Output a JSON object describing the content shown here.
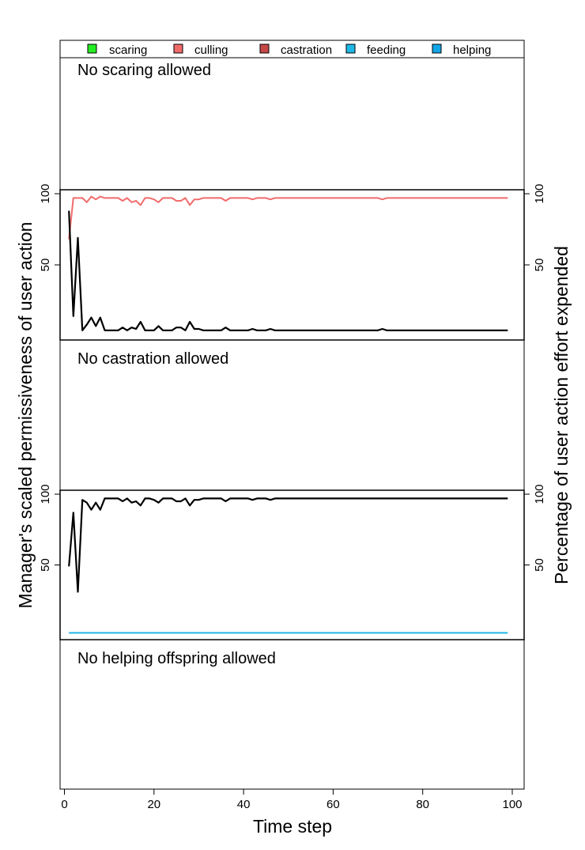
{
  "figure": {
    "x_axis_label": "Time step",
    "y_axis_label_left": "Manager's scaled permissiveness of user action",
    "y_axis_label_right": "Percentage of user action effort expended"
  },
  "legend": {
    "placement": "top",
    "entries": [
      {
        "label": "scaring",
        "color": "#22EE22"
      },
      {
        "label": "culling",
        "color": "#F26B6B"
      },
      {
        "label": "castration",
        "color": "#C54848"
      },
      {
        "label": "feeding",
        "color": "#1EB8E6"
      },
      {
        "label": "helping",
        "color": "#12A6E8"
      }
    ]
  },
  "panels": {
    "scaring": {
      "message": "No scaring allowed"
    },
    "castration": {
      "message": "No castration allowed"
    },
    "helping": {
      "message": "No helping offspring allowed"
    }
  },
  "chart_data": [
    {
      "type": "line",
      "panel": "culling",
      "xlim": [
        0,
        100
      ],
      "ylim": [
        0,
        100
      ],
      "x_ticks": [
        0,
        20,
        40,
        60,
        80,
        100
      ],
      "y_ticks_left": [
        50,
        100
      ],
      "y_ticks_right": [
        50,
        100
      ],
      "series": [
        {
          "role": "permissiveness",
          "color": "#000000",
          "x": [
            1,
            2,
            3,
            4,
            5,
            6,
            7,
            8,
            9,
            10,
            11,
            12,
            13,
            14,
            15,
            16,
            17,
            18,
            19,
            20,
            21,
            22,
            23,
            24,
            25,
            26,
            27,
            28,
            29,
            30,
            31,
            32,
            33,
            34,
            35,
            36,
            37,
            38,
            39,
            40,
            41,
            42,
            43,
            44,
            45,
            46,
            47,
            48,
            49,
            50,
            60,
            70,
            71,
            72,
            80,
            90,
            99
          ],
          "y": [
            88,
            14,
            69,
            4,
            8,
            13,
            7,
            13,
            4,
            4,
            4,
            4,
            6,
            4,
            6,
            5,
            10,
            4,
            4,
            4,
            7,
            4,
            4,
            4,
            6,
            6,
            4,
            10,
            5,
            5,
            4,
            4,
            4,
            4,
            4,
            6,
            4,
            4,
            4,
            4,
            4,
            5,
            4,
            4,
            4,
            5,
            4,
            4,
            4,
            4,
            4,
            4,
            5,
            4,
            4,
            4,
            4
          ]
        },
        {
          "role": "effort",
          "color": "#F26B6B",
          "x": [
            1,
            2,
            3,
            4,
            5,
            6,
            7,
            8,
            9,
            10,
            11,
            12,
            13,
            14,
            15,
            16,
            17,
            18,
            19,
            20,
            21,
            22,
            23,
            24,
            25,
            26,
            27,
            28,
            29,
            30,
            31,
            32,
            33,
            34,
            35,
            36,
            37,
            38,
            39,
            40,
            41,
            42,
            43,
            44,
            45,
            46,
            47,
            48,
            49,
            50,
            60,
            70,
            71,
            72,
            80,
            90,
            99
          ],
          "y": [
            68,
            97,
            97,
            97,
            94,
            98,
            96,
            98,
            97,
            97,
            97,
            97,
            95,
            97,
            94,
            95,
            92,
            97,
            97,
            96,
            94,
            97,
            97,
            97,
            95,
            95,
            97,
            92,
            96,
            96,
            97,
            97,
            97,
            97,
            97,
            95,
            97,
            97,
            97,
            97,
            97,
            96,
            97,
            97,
            97,
            96,
            97,
            97,
            97,
            97,
            97,
            97,
            96,
            97,
            97,
            97,
            97
          ]
        }
      ]
    },
    {
      "type": "line",
      "panel": "feeding",
      "xlim": [
        0,
        100
      ],
      "ylim": [
        0,
        100
      ],
      "x_ticks": [
        0,
        20,
        40,
        60,
        80,
        100
      ],
      "y_ticks_left": [
        50,
        100
      ],
      "y_ticks_right": [
        50,
        100
      ],
      "series": [
        {
          "role": "permissiveness",
          "color": "#000000",
          "x": [
            1,
            2,
            3,
            4,
            5,
            6,
            7,
            8,
            9,
            10,
            11,
            12,
            13,
            14,
            15,
            16,
            17,
            18,
            19,
            20,
            21,
            22,
            23,
            24,
            25,
            26,
            27,
            28,
            29,
            30,
            31,
            32,
            33,
            34,
            35,
            36,
            37,
            38,
            39,
            40,
            41,
            42,
            43,
            44,
            45,
            46,
            47,
            48,
            49,
            50,
            60,
            70,
            80,
            90,
            99
          ],
          "y": [
            49,
            87,
            31,
            96,
            94,
            89,
            94,
            89,
            97,
            97,
            97,
            97,
            95,
            97,
            94,
            95,
            92,
            97,
            97,
            96,
            94,
            97,
            97,
            97,
            95,
            95,
            97,
            92,
            96,
            96,
            97,
            97,
            97,
            97,
            97,
            95,
            97,
            97,
            97,
            97,
            97,
            96,
            97,
            97,
            97,
            96,
            97,
            97,
            97,
            97,
            97,
            97,
            97,
            97,
            97
          ]
        },
        {
          "role": "effort",
          "color": "#1EB8E6",
          "x": [
            1,
            99
          ],
          "y": [
            2,
            2
          ]
        }
      ]
    }
  ]
}
